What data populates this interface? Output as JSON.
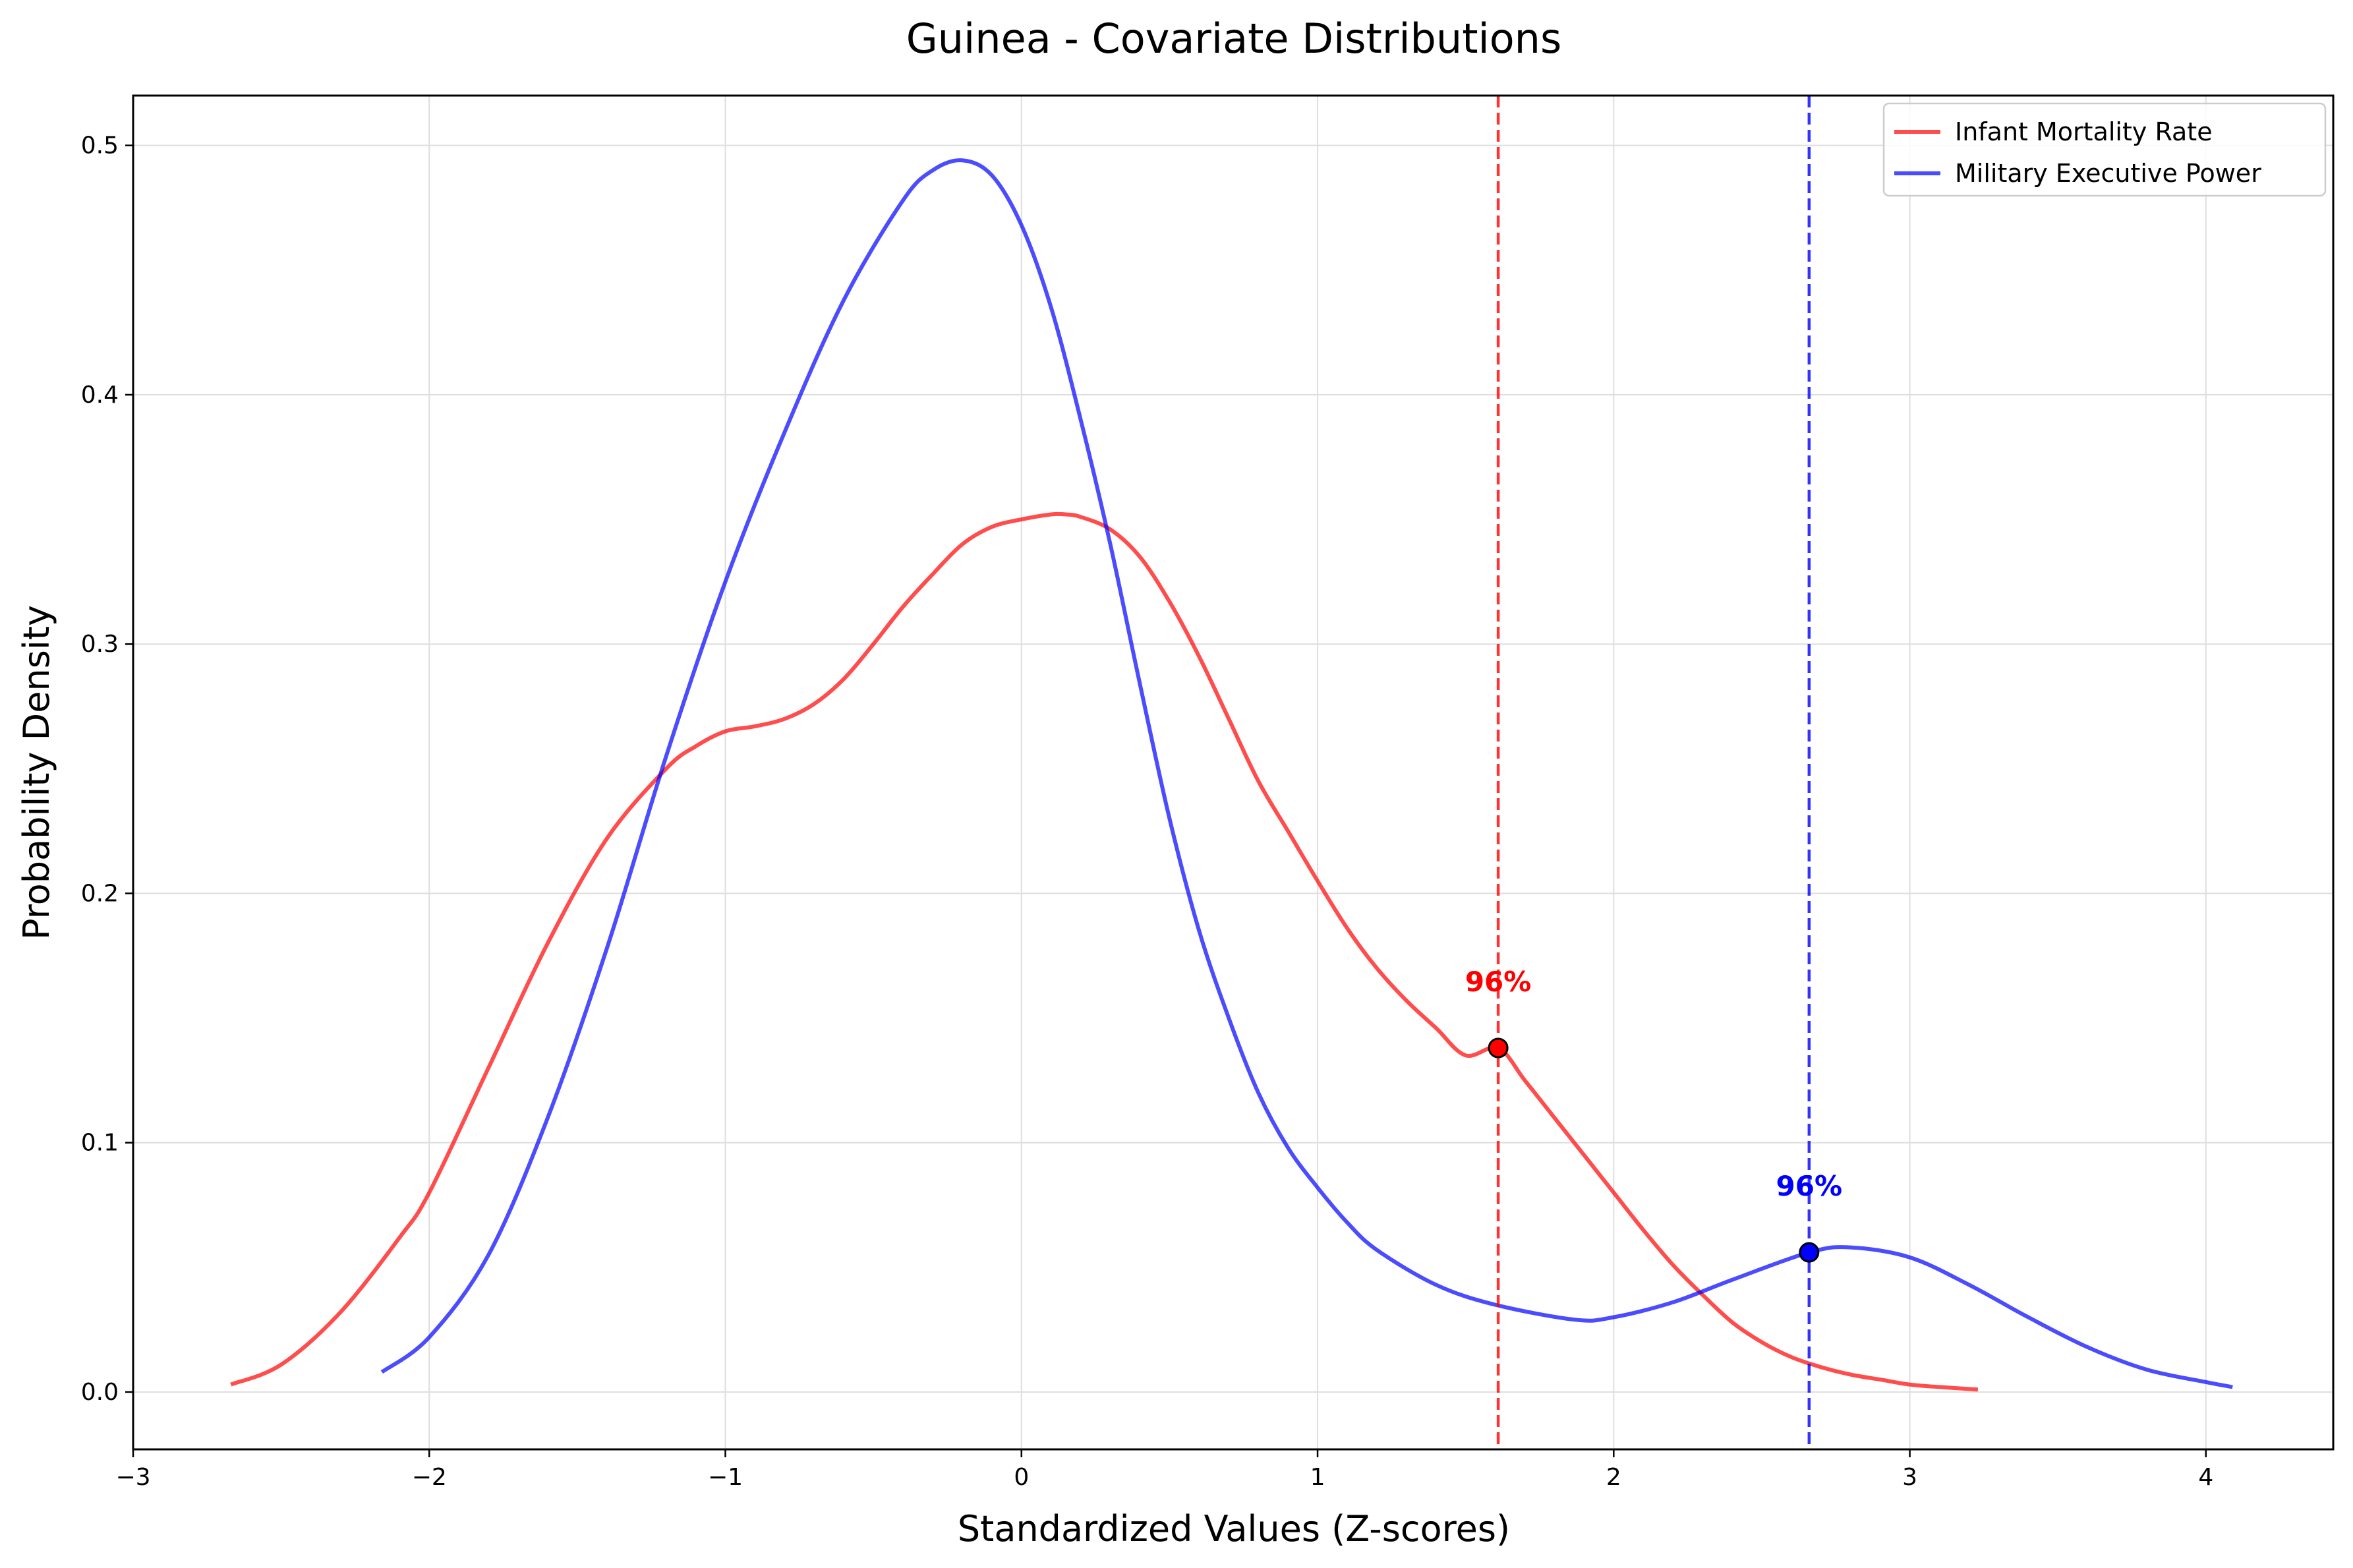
{
  "chart_data": {
    "type": "line",
    "title": "Guinea - Covariate Distributions",
    "xlabel": "Standardized Values (Z-scores)",
    "ylabel": "Probability Density",
    "xlim": [
      -3,
      4.43
    ],
    "ylim": [
      -0.023,
      0.52
    ],
    "xticks": [
      -3,
      -2,
      -1,
      0,
      1,
      2,
      3,
      4
    ],
    "xtick_labels": [
      "−3",
      "−2",
      "−1",
      "0",
      "1",
      "2",
      "3",
      "4"
    ],
    "yticks": [
      0.0,
      0.1,
      0.2,
      0.3,
      0.4,
      0.5
    ],
    "ytick_labels": [
      "0.0",
      "0.1",
      "0.2",
      "0.3",
      "0.4",
      "0.5"
    ],
    "grid": true,
    "legend_position": "top-right",
    "series": [
      {
        "name": "Infant Mortality Rate",
        "color": "#ff0000",
        "x": [
          -2.67,
          -2.5,
          -2.3,
          -2.1,
          -2.0,
          -1.8,
          -1.6,
          -1.4,
          -1.2,
          -1.1,
          -1.0,
          -0.9,
          -0.8,
          -0.7,
          -0.6,
          -0.5,
          -0.4,
          -0.3,
          -0.2,
          -0.1,
          0.0,
          0.1,
          0.15,
          0.2,
          0.3,
          0.4,
          0.5,
          0.6,
          0.7,
          0.8,
          0.9,
          1.0,
          1.1,
          1.2,
          1.3,
          1.4,
          1.5,
          1.61,
          1.7,
          1.8,
          1.9,
          2.0,
          2.1,
          2.2,
          2.3,
          2.4,
          2.5,
          2.6,
          2.7,
          2.8,
          2.9,
          3.0,
          3.1,
          3.23
        ],
        "y": [
          0.003,
          0.011,
          0.032,
          0.062,
          0.08,
          0.13,
          0.18,
          0.222,
          0.25,
          0.259,
          0.265,
          0.267,
          0.27,
          0.276,
          0.286,
          0.3,
          0.315,
          0.328,
          0.34,
          0.347,
          0.35,
          0.352,
          0.352,
          0.351,
          0.346,
          0.335,
          0.317,
          0.295,
          0.27,
          0.245,
          0.225,
          0.205,
          0.186,
          0.17,
          0.157,
          0.146,
          0.135,
          0.138,
          0.125,
          0.11,
          0.095,
          0.08,
          0.065,
          0.051,
          0.039,
          0.028,
          0.02,
          0.014,
          0.01,
          0.007,
          0.005,
          0.003,
          0.002,
          0.001
        ],
        "marker": {
          "x": 1.61,
          "y": 0.138,
          "label": "96%"
        }
      },
      {
        "name": "Military Executive Power",
        "color": "#0000ff",
        "x": [
          -2.16,
          -2.0,
          -1.8,
          -1.6,
          -1.4,
          -1.2,
          -1.0,
          -0.8,
          -0.6,
          -0.4,
          -0.3,
          -0.2,
          -0.1,
          0.0,
          0.1,
          0.2,
          0.3,
          0.4,
          0.5,
          0.6,
          0.7,
          0.8,
          0.9,
          1.0,
          1.1,
          1.2,
          1.4,
          1.6,
          1.87,
          2.0,
          2.2,
          2.4,
          2.66,
          2.8,
          3.0,
          3.2,
          3.4,
          3.6,
          3.8,
          4.0,
          4.09
        ],
        "y": [
          0.008,
          0.022,
          0.055,
          0.11,
          0.178,
          0.255,
          0.325,
          0.385,
          0.438,
          0.478,
          0.49,
          0.494,
          0.488,
          0.468,
          0.435,
          0.39,
          0.34,
          0.284,
          0.23,
          0.185,
          0.15,
          0.12,
          0.098,
          0.082,
          0.068,
          0.057,
          0.043,
          0.035,
          0.029,
          0.03,
          0.036,
          0.045,
          0.056,
          0.058,
          0.054,
          0.043,
          0.03,
          0.018,
          0.009,
          0.004,
          0.002
        ],
        "marker": {
          "x": 2.66,
          "y": 0.056,
          "label": "96%"
        }
      }
    ],
    "vlines": [
      {
        "x": 1.61,
        "color": "#ff0000",
        "style": "dashed"
      },
      {
        "x": 2.66,
        "color": "#0000ff",
        "style": "dashed"
      }
    ]
  }
}
